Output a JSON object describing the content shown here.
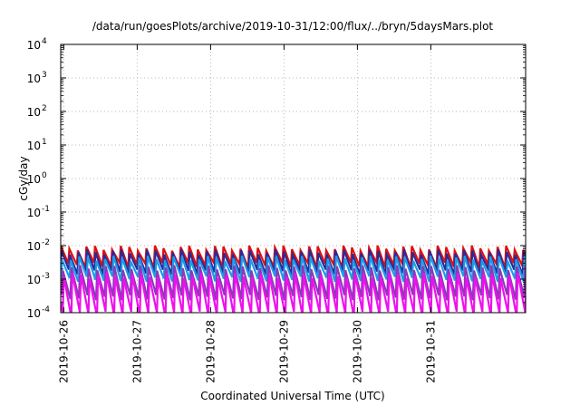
{
  "chart_data": {
    "type": "line",
    "title": "/data/run/goesPlots/archive/2019-10-31/12:00/flux/../bryn/5daysMars.plot",
    "xlabel": "Coordinated Universal Time (UTC)",
    "ylabel": "cGy/day",
    "yscale": "log",
    "ylim": [
      0.0001,
      10000
    ],
    "ytick_exponents": [
      -4,
      -3,
      -2,
      -1,
      0,
      1,
      2,
      3,
      4
    ],
    "ytick_base": "10",
    "xlim": [
      "2019-10-25T23:00",
      "2019-11-01T07:00"
    ],
    "x_ticks": [
      "2019-10-26",
      "2019-10-27",
      "2019-10-28",
      "2019-10-29",
      "2019-10-30",
      "2019-10-31"
    ],
    "grid": true,
    "legend": "none",
    "sawtooth_period_hours": 2.8,
    "series": [
      {
        "color": "#e01010",
        "peak": 0.0085,
        "trough": 0.0026,
        "phase_hours": 0.0
      },
      {
        "color": "#2a2a9a",
        "peak": 0.0065,
        "trough": 0.0016,
        "phase_hours": 0.2
      },
      {
        "color": "#1f9be8",
        "peak": 0.0042,
        "trough": 0.001,
        "phase_hours": 0.45
      },
      {
        "color": "#8a3ab8",
        "peak": 0.0022,
        "trough": 0.00028,
        "phase_hours": 0.7
      },
      {
        "color": "#ee10ee",
        "peak": 0.0013,
        "trough": 9e-05,
        "phase_hours": 1.0
      }
    ]
  }
}
